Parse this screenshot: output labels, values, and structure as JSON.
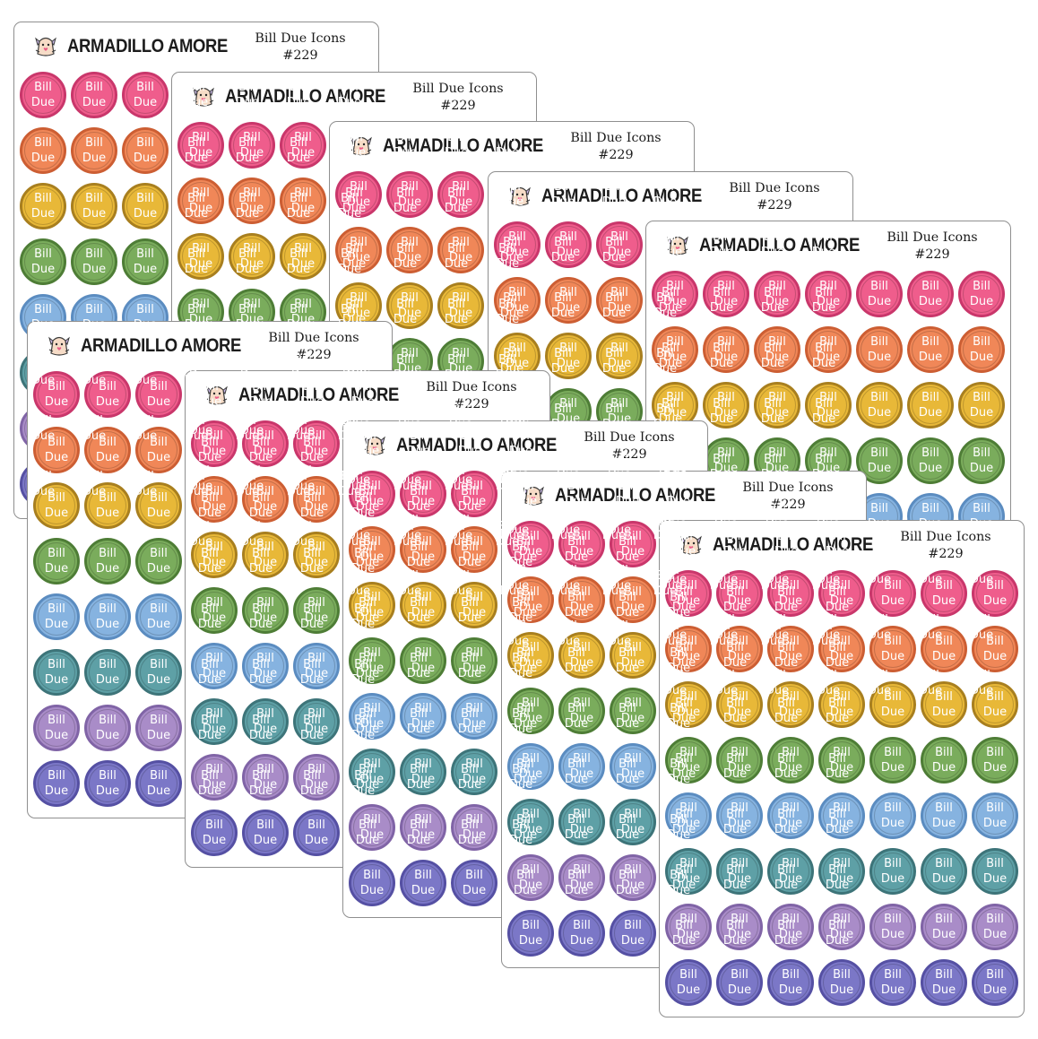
{
  "brand": {
    "name": "ARMADILLO AMORE",
    "logo_icon": "armadillo-logo-icon"
  },
  "sheet_title": {
    "line1": "Bill Due Icons",
    "line2": "#229"
  },
  "sticker_text": {
    "line1": "Bill",
    "line2": "Due"
  },
  "sheet_count": 10,
  "stickers_per_row": 7,
  "rows": [
    {
      "color": "pink",
      "fill": "#ef5d8c",
      "ring": "#c9376b"
    },
    {
      "color": "orange",
      "fill": "#f08758",
      "ring": "#cc5e33"
    },
    {
      "color": "yellow",
      "fill": "#e8b838",
      "ring": "#a87f1f"
    },
    {
      "color": "green",
      "fill": "#7aac5c",
      "ring": "#4e7d36"
    },
    {
      "color": "blue",
      "fill": "#86b3e0",
      "ring": "#5b8cc0"
    },
    {
      "color": "teal",
      "fill": "#5ea0a6",
      "ring": "#3d7479"
    },
    {
      "color": "lilac",
      "fill": "#a98cc8",
      "ring": "#8064a6"
    },
    {
      "color": "indigo",
      "fill": "#7b77c7",
      "ring": "#5550a3"
    }
  ]
}
